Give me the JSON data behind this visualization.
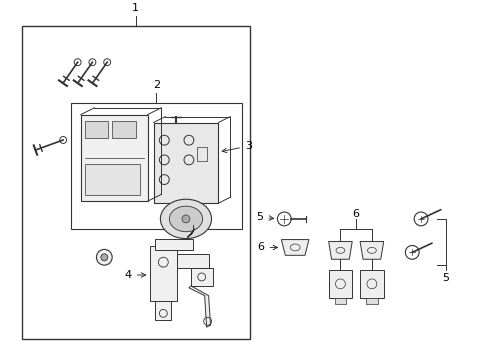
{
  "bg_color": "#ffffff",
  "line_color": "#333333",
  "text_color": "#000000",
  "fig_w": 4.89,
  "fig_h": 3.6,
  "dpi": 100
}
